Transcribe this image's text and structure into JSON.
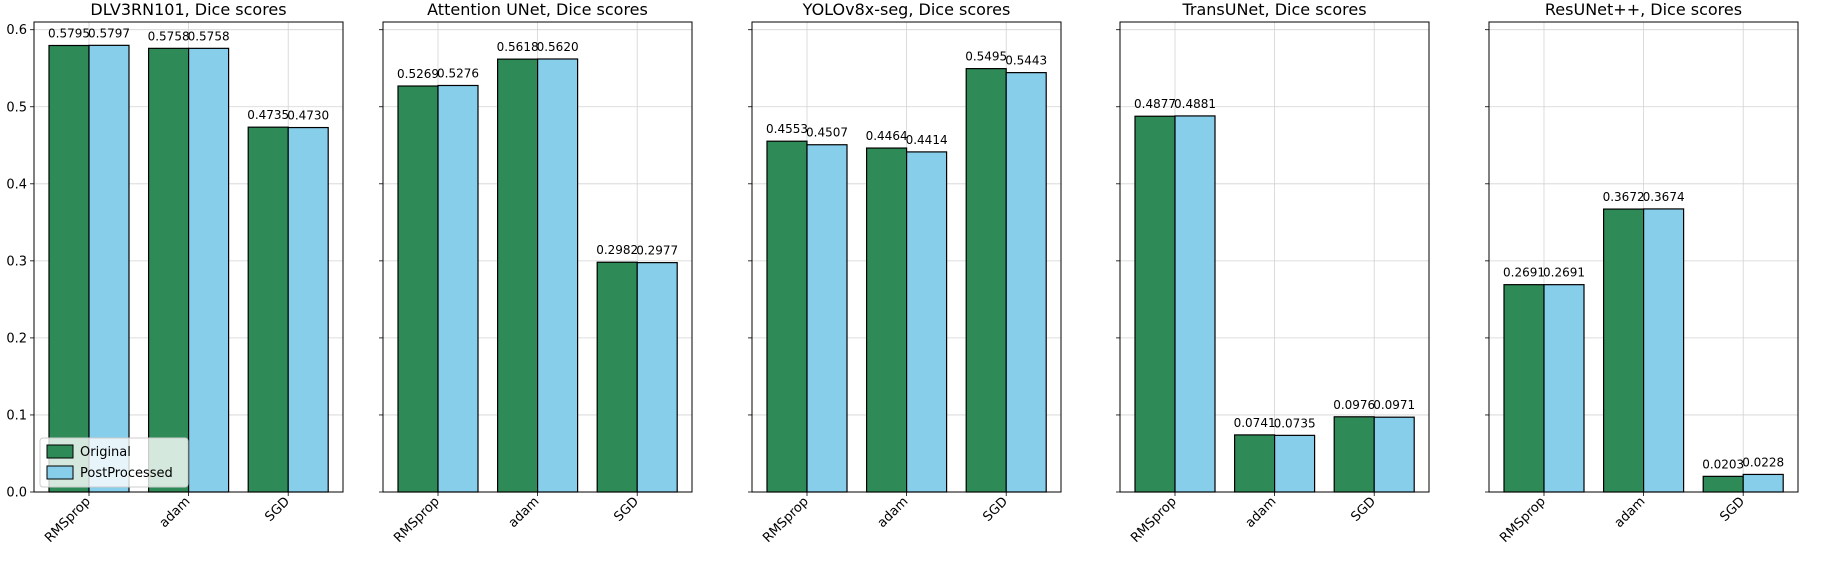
{
  "colors": {
    "original": "#2e8b57",
    "postprocessed": "#87ceeb",
    "edge": "#000000",
    "grid": "#d3d3d3"
  },
  "chart_data": [
    {
      "type": "bar",
      "title": "DLV3RN101, Dice scores",
      "categories": [
        "RMSprop",
        "adam",
        "SGD"
      ],
      "series": [
        {
          "name": "Original",
          "values": [
            0.5795,
            0.5758,
            0.4735
          ],
          "labels": [
            "0.5795",
            "0.5758",
            "0.4735"
          ]
        },
        {
          "name": "PostProcessed",
          "values": [
            0.5797,
            0.5758,
            0.473
          ],
          "labels": [
            "0.5797",
            "0.5758",
            "0.4730"
          ]
        }
      ],
      "ylim": [
        0,
        0.61
      ],
      "yticks": [
        "0.0",
        "0.1",
        "0.2",
        "0.3",
        "0.4",
        "0.5",
        "0.6"
      ],
      "ytick_values": [
        0,
        0.1,
        0.2,
        0.3,
        0.4,
        0.5,
        0.6
      ],
      "show_yticklabels": true,
      "legend": true,
      "legend_position": "lower-left",
      "grid": true
    },
    {
      "type": "bar",
      "title": "Attention UNet, Dice scores",
      "categories": [
        "RMSprop",
        "adam",
        "SGD"
      ],
      "series": [
        {
          "name": "Original",
          "values": [
            0.5269,
            0.5618,
            0.2982
          ],
          "labels": [
            "0.5269",
            "0.5618",
            "0.2982"
          ]
        },
        {
          "name": "PostProcessed",
          "values": [
            0.5276,
            0.562,
            0.2977
          ],
          "labels": [
            "0.5276",
            "0.5620",
            "0.2977"
          ]
        }
      ],
      "ylim": [
        0,
        0.61
      ],
      "ytick_values": [
        0,
        0.1,
        0.2,
        0.3,
        0.4,
        0.5,
        0.6
      ],
      "show_yticklabels": false,
      "legend": false,
      "grid": true
    },
    {
      "type": "bar",
      "title": "YOLOv8x-seg, Dice scores",
      "categories": [
        "RMSprop",
        "adam",
        "SGD"
      ],
      "series": [
        {
          "name": "Original",
          "values": [
            0.4553,
            0.4464,
            0.5495
          ],
          "labels": [
            "0.4553",
            "0.4464",
            "0.5495"
          ]
        },
        {
          "name": "PostProcessed",
          "values": [
            0.4507,
            0.4414,
            0.5443
          ],
          "labels": [
            "0.4507",
            "0.4414",
            "0.5443"
          ]
        }
      ],
      "ylim": [
        0,
        0.61
      ],
      "ytick_values": [
        0,
        0.1,
        0.2,
        0.3,
        0.4,
        0.5,
        0.6
      ],
      "show_yticklabels": false,
      "legend": false,
      "grid": true
    },
    {
      "type": "bar",
      "title": "TransUNet, Dice scores",
      "categories": [
        "RMSprop",
        "adam",
        "SGD"
      ],
      "series": [
        {
          "name": "Original",
          "values": [
            0.4877,
            0.0741,
            0.0976
          ],
          "labels": [
            "0.4877",
            "0.0741",
            "0.0976"
          ]
        },
        {
          "name": "PostProcessed",
          "values": [
            0.4881,
            0.0735,
            0.0971
          ],
          "labels": [
            "0.4881",
            "0.0735",
            "0.0971"
          ]
        }
      ],
      "ylim": [
        0,
        0.61
      ],
      "ytick_values": [
        0,
        0.1,
        0.2,
        0.3,
        0.4,
        0.5,
        0.6
      ],
      "show_yticklabels": false,
      "legend": false,
      "grid": true
    },
    {
      "type": "bar",
      "title": "ResUNet++, Dice scores",
      "categories": [
        "RMSprop",
        "adam",
        "SGD"
      ],
      "series": [
        {
          "name": "Original",
          "values": [
            0.2691,
            0.3672,
            0.0203
          ],
          "labels": [
            "0.2691",
            "0.3672",
            "0.0203"
          ]
        },
        {
          "name": "PostProcessed",
          "values": [
            0.2691,
            0.3674,
            0.0228
          ],
          "labels": [
            "0.2691",
            "0.3674",
            "0.0228"
          ]
        }
      ],
      "ylim": [
        0,
        0.61
      ],
      "ytick_values": [
        0,
        0.1,
        0.2,
        0.3,
        0.4,
        0.5,
        0.6
      ],
      "show_yticklabels": false,
      "legend": false,
      "grid": true
    }
  ]
}
